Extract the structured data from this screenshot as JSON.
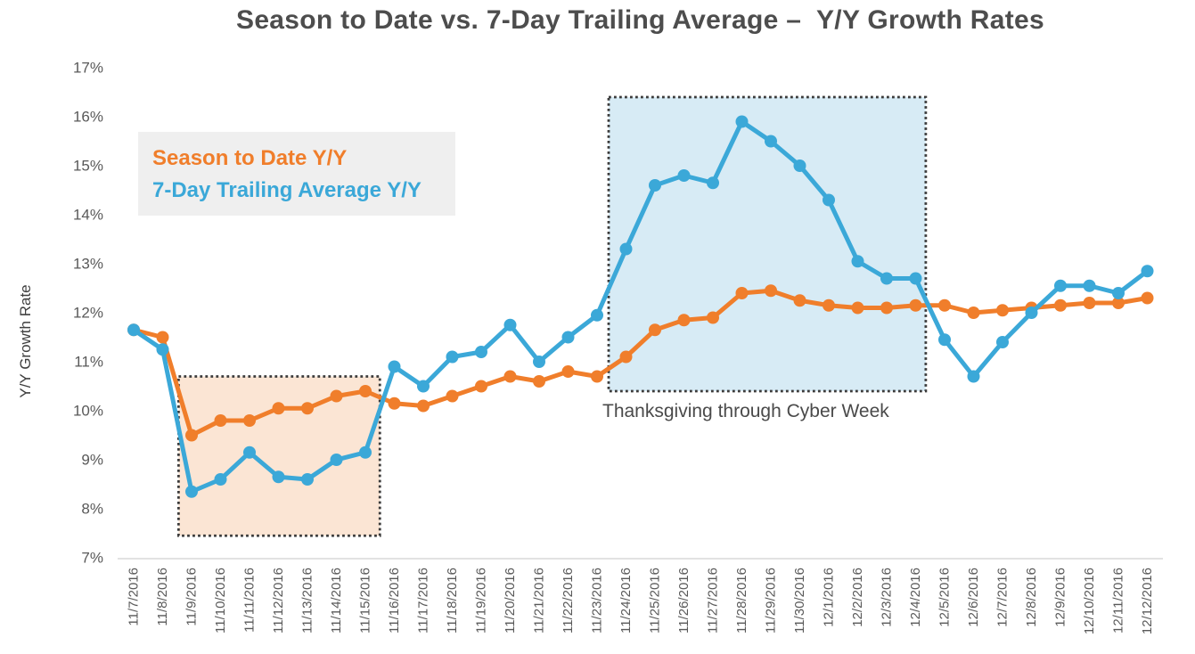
{
  "chart_data": {
    "type": "line",
    "title": "Season to Date vs. 7-Day Trailing Average –  Y/Y Growth Rates",
    "ylabel": "Y/Y Growth Rate",
    "ylim": [
      7,
      17
    ],
    "y_tick_labels": [
      "17%",
      "16%",
      "15%",
      "14%",
      "13%",
      "12%",
      "11%",
      "10%",
      "9%",
      "8%",
      "7%"
    ],
    "y_tick_values": [
      17,
      16,
      15,
      14,
      13,
      12,
      11,
      10,
      9,
      8,
      7
    ],
    "grid": false,
    "legend_position": "top-left-inside",
    "categories": [
      "11/7/2016",
      "11/8/2016",
      "11/9/2016",
      "11/10/2016",
      "11/11/2016",
      "11/12/2016",
      "11/13/2016",
      "11/14/2016",
      "11/15/2016",
      "11/16/2016",
      "11/17/2016",
      "11/18/2016",
      "11/19/2016",
      "11/20/2016",
      "11/21/2016",
      "11/22/2016",
      "11/23/2016",
      "11/24/2016",
      "11/25/2016",
      "11/26/2016",
      "11/27/2016",
      "11/28/2016",
      "11/29/2016",
      "11/30/2016",
      "12/1/2016",
      "12/2/2016",
      "12/3/2016",
      "12/4/2016",
      "12/5/2016",
      "12/6/2016",
      "12/7/2016",
      "12/8/2016",
      "12/9/2016",
      "12/10/2016",
      "12/11/2016",
      "12/12/2016"
    ],
    "series": [
      {
        "name": "Season to Date Y/Y",
        "color": "#F07E2B",
        "values": [
          11.65,
          11.5,
          9.5,
          9.8,
          9.8,
          10.05,
          10.05,
          10.3,
          10.4,
          10.15,
          10.1,
          10.3,
          10.5,
          10.7,
          10.6,
          10.8,
          10.7,
          11.1,
          11.65,
          11.85,
          11.9,
          12.4,
          12.45,
          12.25,
          12.15,
          12.1,
          12.1,
          12.15,
          12.15,
          12.0,
          12.05,
          12.1,
          12.15,
          12.2,
          12.2,
          12.3
        ]
      },
      {
        "name": "7-Day Trailing Average Y/Y",
        "color": "#3BA8D8",
        "values": [
          11.65,
          11.25,
          8.35,
          8.6,
          9.15,
          8.65,
          8.6,
          9.0,
          9.15,
          10.9,
          10.5,
          11.1,
          11.2,
          11.75,
          11.0,
          11.5,
          11.95,
          13.3,
          14.6,
          14.8,
          14.65,
          15.9,
          15.5,
          15.0,
          14.3,
          13.05,
          12.7,
          12.7,
          11.45,
          10.7,
          11.4,
          12.0,
          12.55,
          12.55,
          12.4,
          12.85
        ]
      }
    ],
    "annotations": {
      "regions": [
        {
          "name": "early-season-dip",
          "x_from_index": 1.55,
          "x_to_index": 8.5,
          "y_from": 7.45,
          "y_to": 10.7,
          "fill": "#FBE5D4",
          "border_color": "#3b3b3b",
          "border_style": "dotted",
          "label": ""
        },
        {
          "name": "thanksgiving-cyber-week",
          "x_from_index": 16.4,
          "x_to_index": 27.35,
          "y_from": 10.4,
          "y_to": 16.4,
          "fill": "#D7EBF5",
          "border_color": "#3b3b3b",
          "border_style": "dotted",
          "label": "Thanksgiving through Cyber Week"
        }
      ]
    },
    "colors": {
      "axis_text": "#595959",
      "axis_line": "#d9d9d9",
      "title_text": "#4d4d4d",
      "legend_background": "#efefef"
    }
  }
}
